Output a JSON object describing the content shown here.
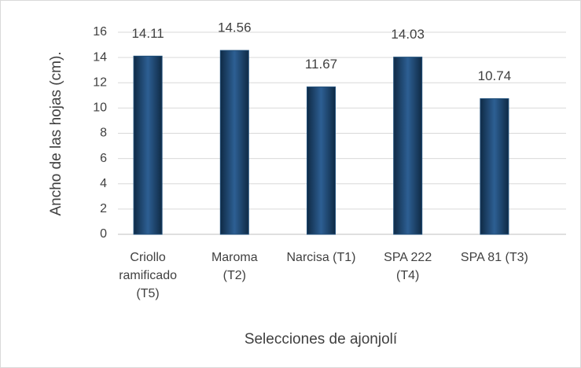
{
  "chart_data": {
    "type": "bar",
    "categories": [
      "Criollo ramificado (T5)",
      "Maroma (T2)",
      "Narcisa (T1)",
      "SPA 222 (T4)",
      "SPA 81 (T3)"
    ],
    "values": [
      14.11,
      14.56,
      11.67,
      14.03,
      10.74
    ],
    "color": "#1f4e79",
    "y_label": "Ancho de las  hojas  (cm).",
    "x_label": "Selecciones de ajonjolí",
    "ylim": [
      0,
      16
    ],
    "yticks": [
      0,
      2,
      4,
      6,
      8,
      10,
      12,
      14,
      16
    ],
    "grid": true
  }
}
